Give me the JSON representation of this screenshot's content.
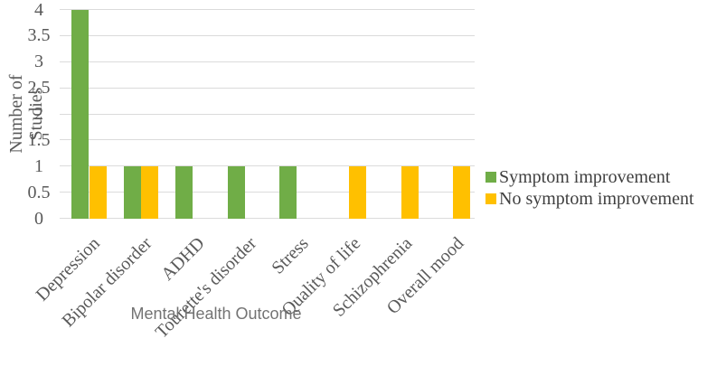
{
  "chart_data": {
    "type": "bar",
    "title": "",
    "xlabel": "Mental Health Outcome",
    "ylabel": "Number of Studies",
    "categories": [
      "Depression",
      "Bipolar disorder",
      "ADHD",
      "Tourette's disorder",
      "Stress",
      "Quality of life",
      "Schizophrenia",
      "Overall mood"
    ],
    "series": [
      {
        "name": "Symptom improvement",
        "color": "#70AD47",
        "values": [
          4,
          1,
          1,
          1,
          1,
          0,
          0,
          0
        ]
      },
      {
        "name": "No symptom improvement",
        "color": "#FFC000",
        "values": [
          1,
          1,
          0,
          0,
          0,
          1,
          1,
          1
        ]
      }
    ],
    "ylim": [
      0,
      4
    ],
    "ytick_step": 0.5,
    "ytick_labels": [
      "0",
      "0.5",
      "1",
      "1.5",
      "2",
      "2.5",
      "3",
      "3.5",
      "4"
    ],
    "grid": true,
    "grid_color": "#DBDBDB",
    "legend_position": "right",
    "text_colors": {
      "axis": "#595959",
      "legend": "#3F3F3F",
      "x_axis_title": "#737373"
    }
  }
}
